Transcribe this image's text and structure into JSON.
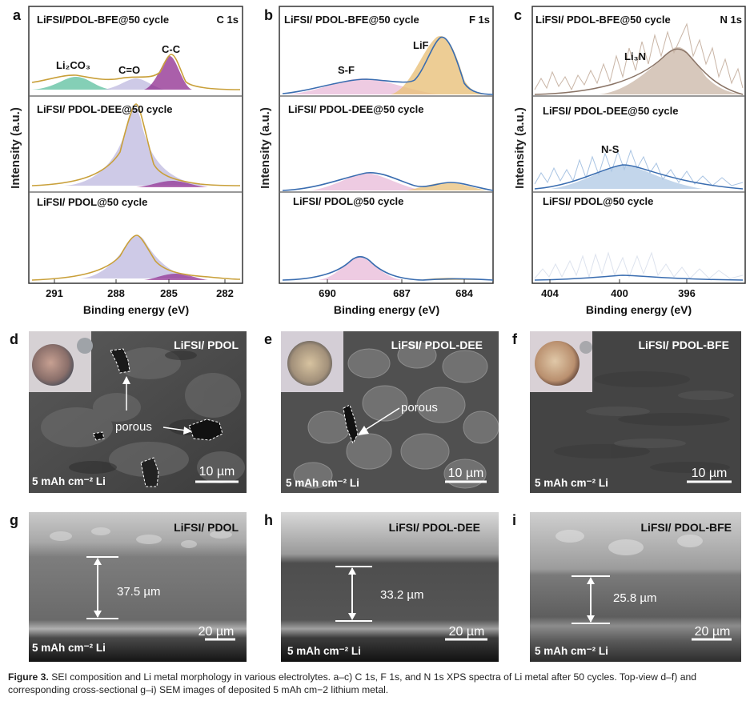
{
  "figure": {
    "caption_label": "Figure 3.",
    "caption_text": "SEI composition and Li metal morphology in various electrolytes. a–c) C 1s, F 1s, and N 1s XPS spectra of Li metal after 50 cycles. Top-view d–f) and corresponding cross-sectional g–i) SEM images of deposited 5 mAh cm−2 lithium metal."
  },
  "xps": {
    "y_label": "Intensity (a.u.)",
    "x_label": "Binding energy (eV)",
    "panels": [
      {
        "letter": "a",
        "element": "C 1s",
        "ticks": [
          "291",
          "288",
          "285",
          "282"
        ],
        "traces": [
          "LiFSI/PDOL-BFE@50 cycle",
          "LiFSI/ PDOL-DEE@50 cycle",
          "LiFSI/ PDOL@50 cycle"
        ],
        "peaks": [
          "Li₂CO₃",
          "C=O",
          "C-C"
        ]
      },
      {
        "letter": "b",
        "element": "F 1s",
        "ticks": [
          "690",
          "687",
          "684"
        ],
        "traces": [
          "LiFSI/ PDOL-BFE@50 cycle",
          "LiFSI/ PDOL-DEE@50 cycle",
          "LiFSI/ PDOL@50 cycle"
        ],
        "peaks": [
          "S-F",
          "LiF"
        ]
      },
      {
        "letter": "c",
        "element": "N 1s",
        "ticks": [
          "404",
          "400",
          "396"
        ],
        "traces": [
          "LiFSI/ PDOL-BFE@50 cycle",
          "LiFSI/ PDOL-DEE@50 cycle",
          "LiFSI/ PDOL@50 cycle"
        ],
        "peaks": [
          "Li₃N",
          "N-S"
        ]
      }
    ]
  },
  "sem_top": [
    {
      "letter": "d",
      "label": "LiFSI/ PDOL",
      "capacity": "5 mAh cm⁻² Li",
      "scale": "10 µm",
      "annotation": "porous"
    },
    {
      "letter": "e",
      "label": "LiFSI/ PDOL-DEE",
      "capacity": "5 mAh cm⁻² Li",
      "scale": "10 µm",
      "annotation": "porous"
    },
    {
      "letter": "f",
      "label": "LiFSI/ PDOL-BFE",
      "capacity": "5 mAh cm⁻² Li",
      "scale": "10 µm"
    }
  ],
  "sem_cross": [
    {
      "letter": "g",
      "label": "LiFSI/ PDOL",
      "capacity": "5 mAh cm⁻² Li",
      "scale": "20 µm",
      "thickness": "37.5 µm"
    },
    {
      "letter": "h",
      "label": "LiFSI/ PDOL-DEE",
      "capacity": "5 mAh cm⁻² Li",
      "scale": "20 µm",
      "thickness": "33.2 µm"
    },
    {
      "letter": "i",
      "label": "LiFSI/ PDOL-BFE",
      "capacity": "5 mAh cm⁻² Li",
      "scale": "20 µm",
      "thickness": "25.8 µm"
    }
  ],
  "colors": {
    "frame": "#333333",
    "fit_gold": "#c9a03a",
    "fit_blue": "#3a6db0",
    "fill_purple": "#b9b4dd",
    "fill_violet": "#8e2a8e",
    "fill_green": "#5bbf9e",
    "fill_pink": "#e8b9d8",
    "fill_orange": "#e8c07a",
    "fill_blue": "#a9c4e3",
    "fill_brown": "#c9b5a6"
  }
}
